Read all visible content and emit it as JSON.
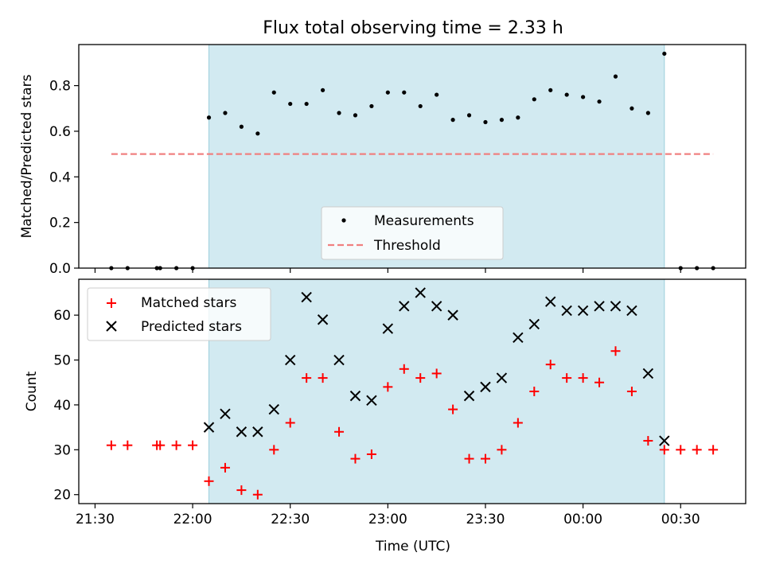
{
  "figure": {
    "title": "Flux total observing time = 2.33 h",
    "colors": {
      "measurement": "#000000",
      "threshold": "#f08080",
      "shade": "#add8e6",
      "matched": "#ff0000",
      "predicted": "#000000"
    }
  },
  "chart_data": [
    {
      "type": "scatter",
      "ylabel": "Matched/Predicted stars",
      "xlim": [
        "21:25",
        "00:50"
      ],
      "ylim": [
        0,
        0.98
      ],
      "yticks": [
        "0.0",
        "0.2",
        "0.4",
        "0.6",
        "0.8"
      ],
      "shaded_span": [
        "22:05",
        "00:25"
      ],
      "legend": {
        "placement": "lower-center",
        "entries": [
          "Measurements",
          "Threshold"
        ]
      },
      "threshold": {
        "name": "Threshold",
        "value": 0.5,
        "x_range": [
          "21:35",
          "00:40"
        ]
      },
      "series": [
        {
          "name": "Measurements",
          "marker": "dot",
          "points": [
            [
              "21:35",
              0.0
            ],
            [
              "21:40",
              0.0
            ],
            [
              "21:49",
              0.0
            ],
            [
              "21:50",
              0.0
            ],
            [
              "21:55",
              0.0
            ],
            [
              "22:00",
              0.0
            ],
            [
              "22:05",
              0.66
            ],
            [
              "22:10",
              0.68
            ],
            [
              "22:15",
              0.62
            ],
            [
              "22:20",
              0.59
            ],
            [
              "22:25",
              0.77
            ],
            [
              "22:30",
              0.72
            ],
            [
              "22:35",
              0.72
            ],
            [
              "22:40",
              0.78
            ],
            [
              "22:45",
              0.68
            ],
            [
              "22:50",
              0.67
            ],
            [
              "22:55",
              0.71
            ],
            [
              "23:00",
              0.77
            ],
            [
              "23:05",
              0.77
            ],
            [
              "23:10",
              0.71
            ],
            [
              "23:15",
              0.76
            ],
            [
              "23:20",
              0.65
            ],
            [
              "23:25",
              0.67
            ],
            [
              "23:30",
              0.64
            ],
            [
              "23:35",
              0.65
            ],
            [
              "23:40",
              0.66
            ],
            [
              "23:45",
              0.74
            ],
            [
              "23:50",
              0.78
            ],
            [
              "23:55",
              0.76
            ],
            [
              "00:00",
              0.75
            ],
            [
              "00:05",
              0.73
            ],
            [
              "00:10",
              0.84
            ],
            [
              "00:15",
              0.7
            ],
            [
              "00:20",
              0.68
            ],
            [
              "00:25",
              0.94
            ],
            [
              "00:30",
              0.0
            ],
            [
              "00:35",
              0.0
            ],
            [
              "00:40",
              0.0
            ]
          ]
        }
      ]
    },
    {
      "type": "scatter",
      "xlabel": "Time (UTC)",
      "ylabel": "Count",
      "xlim": [
        "21:25",
        "00:50"
      ],
      "ylim": [
        18,
        68
      ],
      "yticks": [
        "20",
        "30",
        "40",
        "50",
        "60"
      ],
      "xticks": [
        "21:30",
        "22:00",
        "22:30",
        "23:00",
        "23:30",
        "00:00",
        "00:30"
      ],
      "shaded_span": [
        "22:05",
        "00:25"
      ],
      "legend": {
        "placement": "top-left",
        "entries": [
          "Matched stars",
          "Predicted stars"
        ]
      },
      "series": [
        {
          "name": "Matched stars",
          "marker": "plus",
          "points": [
            [
              "21:35",
              31
            ],
            [
              "21:40",
              31
            ],
            [
              "21:49",
              31
            ],
            [
              "21:50",
              31
            ],
            [
              "21:55",
              31
            ],
            [
              "22:00",
              31
            ],
            [
              "22:05",
              23
            ],
            [
              "22:10",
              26
            ],
            [
              "22:15",
              21
            ],
            [
              "22:20",
              20
            ],
            [
              "22:25",
              30
            ],
            [
              "22:30",
              36
            ],
            [
              "22:35",
              46
            ],
            [
              "22:40",
              46
            ],
            [
              "22:45",
              34
            ],
            [
              "22:50",
              28
            ],
            [
              "22:55",
              29
            ],
            [
              "23:00",
              44
            ],
            [
              "23:05",
              48
            ],
            [
              "23:10",
              46
            ],
            [
              "23:15",
              47
            ],
            [
              "23:20",
              39
            ],
            [
              "23:25",
              28
            ],
            [
              "23:30",
              28
            ],
            [
              "23:35",
              30
            ],
            [
              "23:40",
              36
            ],
            [
              "23:45",
              43
            ],
            [
              "23:50",
              49
            ],
            [
              "23:55",
              46
            ],
            [
              "00:00",
              46
            ],
            [
              "00:05",
              45
            ],
            [
              "00:10",
              52
            ],
            [
              "00:15",
              43
            ],
            [
              "00:20",
              32
            ],
            [
              "00:25",
              30
            ],
            [
              "00:30",
              30
            ],
            [
              "00:35",
              30
            ],
            [
              "00:40",
              30
            ]
          ]
        },
        {
          "name": "Predicted stars",
          "marker": "x",
          "points": [
            [
              "22:05",
              35
            ],
            [
              "22:10",
              38
            ],
            [
              "22:15",
              34
            ],
            [
              "22:20",
              34
            ],
            [
              "22:25",
              39
            ],
            [
              "22:30",
              50
            ],
            [
              "22:35",
              64
            ],
            [
              "22:40",
              59
            ],
            [
              "22:45",
              50
            ],
            [
              "22:50",
              42
            ],
            [
              "22:55",
              41
            ],
            [
              "23:00",
              57
            ],
            [
              "23:05",
              62
            ],
            [
              "23:10",
              65
            ],
            [
              "23:15",
              62
            ],
            [
              "23:20",
              60
            ],
            [
              "23:25",
              42
            ],
            [
              "23:30",
              44
            ],
            [
              "23:35",
              46
            ],
            [
              "23:40",
              55
            ],
            [
              "23:45",
              58
            ],
            [
              "23:50",
              63
            ],
            [
              "23:55",
              61
            ],
            [
              "00:00",
              61
            ],
            [
              "00:05",
              62
            ],
            [
              "00:10",
              62
            ],
            [
              "00:15",
              61
            ],
            [
              "00:20",
              47
            ],
            [
              "00:25",
              32
            ]
          ]
        }
      ]
    }
  ]
}
